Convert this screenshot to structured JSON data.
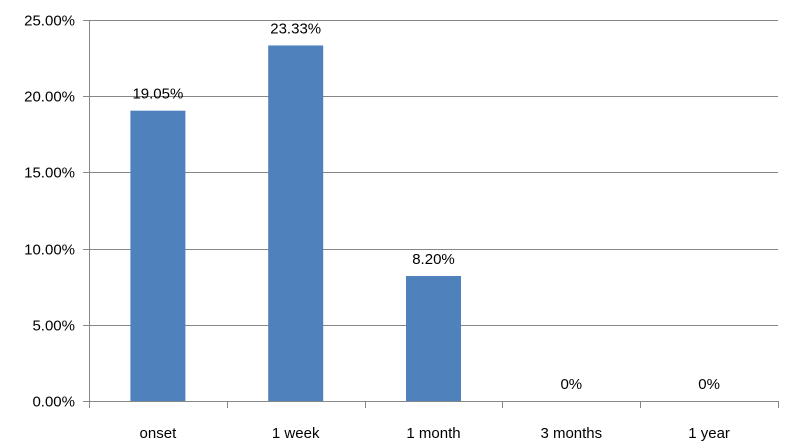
{
  "chart_data": {
    "type": "bar",
    "categories": [
      "onset",
      "1 week",
      "1 month",
      "3 months",
      "1 year"
    ],
    "values": [
      19.05,
      23.33,
      8.2,
      0,
      0
    ],
    "data_labels": [
      "19.05%",
      "23.33%",
      "8.20%",
      "0%",
      "0%"
    ],
    "y_ticks": [
      0,
      5,
      10,
      15,
      20,
      25
    ],
    "y_tick_labels": [
      "0.00%",
      "5.00%",
      "10.00%",
      "15.00%",
      "20.00%",
      "25.00%"
    ],
    "ylim": [
      0,
      25
    ],
    "grid": true,
    "legend": "none",
    "bar_color": "#4F81BD",
    "grid_color": "#868686",
    "axis_color": "#868686"
  }
}
